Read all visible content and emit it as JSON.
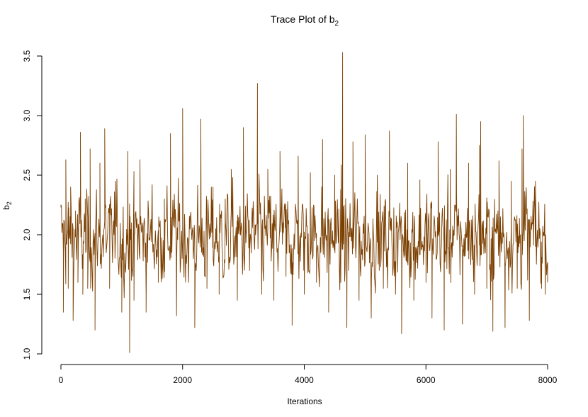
{
  "chart_data": {
    "type": "line",
    "title": "Trace Plot of b",
    "title_subscript": "2",
    "xlabel": "Iterations",
    "ylabel": "b",
    "ylabel_subscript": "2",
    "xlim": [
      0,
      8000
    ],
    "ylim": [
      1.0,
      3.55
    ],
    "x_ticks": [
      0,
      2000,
      4000,
      6000,
      8000
    ],
    "x_tick_labels": [
      "0",
      "2000",
      "4000",
      "6000",
      "8000"
    ],
    "y_ticks": [
      1.0,
      1.5,
      2.0,
      2.5,
      3.0,
      3.5
    ],
    "y_tick_labels": [
      "1.0",
      "1.5",
      "2.0",
      "2.5",
      "3.0",
      "3.5"
    ],
    "grid": false,
    "legend": "none",
    "line_color": "#7B3F00",
    "n_iterations": 8000,
    "series": [
      {
        "x": [
          0,
          40,
          80,
          120,
          160,
          200,
          240,
          280,
          320,
          360,
          400,
          440,
          480,
          560,
          640,
          720,
          800,
          900,
          1000,
          1100,
          1130,
          1160,
          1200,
          1300,
          1400,
          1500,
          1600,
          1700,
          1800,
          1900,
          2000,
          2100,
          2200,
          2300,
          2400,
          2500,
          2600,
          2700,
          2800,
          2900,
          3000,
          3100,
          3200,
          3230,
          3300,
          3400,
          3500,
          3600,
          3700,
          3800,
          3900,
          4000,
          4100,
          4200,
          4300,
          4400,
          4500,
          4600,
          4630,
          4700,
          4800,
          4900,
          5000,
          5100,
          5200,
          5300,
          5400,
          5500,
          5600,
          5700,
          5800,
          5900,
          6000,
          6100,
          6200,
          6300,
          6400,
          6500,
          6600,
          6700,
          6800,
          6880,
          6900,
          7000,
          7100,
          7200,
          7300,
          7400,
          7500,
          7580,
          7600,
          7700,
          7800,
          7900,
          8000
        ],
        "values": [
          2.25,
          1.35,
          2.63,
          1.55,
          2.4,
          1.28,
          2.2,
          1.6,
          2.86,
          1.5,
          2.3,
          1.55,
          2.72,
          1.2,
          2.6,
          2.89,
          1.55,
          2.45,
          1.35,
          2.7,
          1.01,
          2.1,
          1.45,
          2.63,
          1.35,
          2.42,
          1.6,
          2.3,
          2.85,
          1.32,
          3.06,
          1.6,
          1.22,
          2.97,
          1.55,
          2.4,
          1.5,
          2.3,
          2.55,
          1.45,
          2.9,
          1.7,
          2.0,
          3.27,
          1.5,
          2.55,
          1.45,
          2.7,
          1.65,
          1.24,
          2.66,
          1.5,
          2.52,
          1.6,
          2.8,
          1.35,
          2.5,
          1.6,
          3.53,
          1.22,
          2.78,
          1.45,
          2.84,
          1.3,
          2.5,
          1.55,
          2.87,
          1.5,
          1.17,
          2.6,
          1.45,
          2.46,
          1.6,
          1.3,
          2.78,
          1.2,
          2.55,
          3.01,
          1.25,
          2.6,
          1.5,
          2.75,
          2.95,
          1.55,
          1.19,
          2.62,
          1.22,
          2.45,
          1.55,
          2.72,
          3.0,
          1.28,
          2.45,
          1.55,
          1.6
        ]
      }
    ]
  }
}
